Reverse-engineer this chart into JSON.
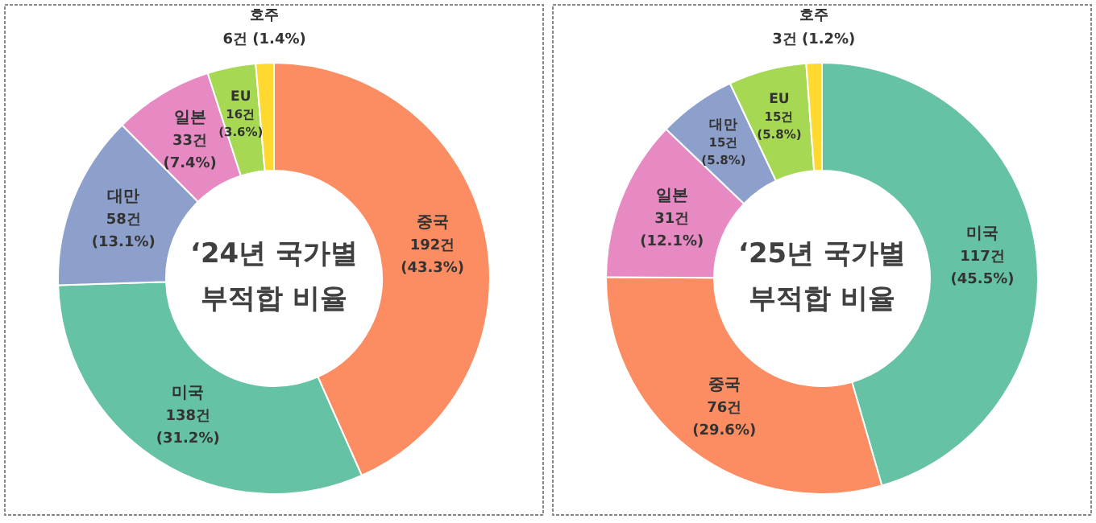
{
  "chart_data": [
    {
      "type": "donut",
      "title": "‘24년 국가별\n부적합 비율",
      "categories": [
        "중국",
        "미국",
        "대만",
        "일본",
        "EU",
        "호주"
      ],
      "values": [
        192,
        138,
        58,
        33,
        16,
        6
      ],
      "colors": [
        "#fc8d62",
        "#66c2a5",
        "#8da0cb",
        "#e78ac3",
        "#a6d854",
        "#ffd92f"
      ],
      "value_labels": [
        "192건\n(43.3%)",
        "138건\n(31.2%)",
        "58건\n(13.1%)",
        "33건\n(7.4%)",
        "16건\n(3.6%)",
        "6건 (1.4%)"
      ]
    },
    {
      "type": "donut",
      "title": "‘25년 국가별\n부적합 비율",
      "categories": [
        "미국",
        "중국",
        "일본",
        "대만",
        "EU",
        "호주"
      ],
      "values": [
        117,
        76,
        31,
        15,
        15,
        3
      ],
      "colors": [
        "#66c2a5",
        "#fc8d62",
        "#e78ac3",
        "#8da0cb",
        "#a6d854",
        "#ffd92f"
      ],
      "value_labels": [
        "117건\n(45.5%)",
        "76건\n(29.6%)",
        "31건\n(12.1%)",
        "15건\n(5.8%)",
        "15건\n(5.8%)",
        "3건 (1.2%)"
      ]
    }
  ]
}
